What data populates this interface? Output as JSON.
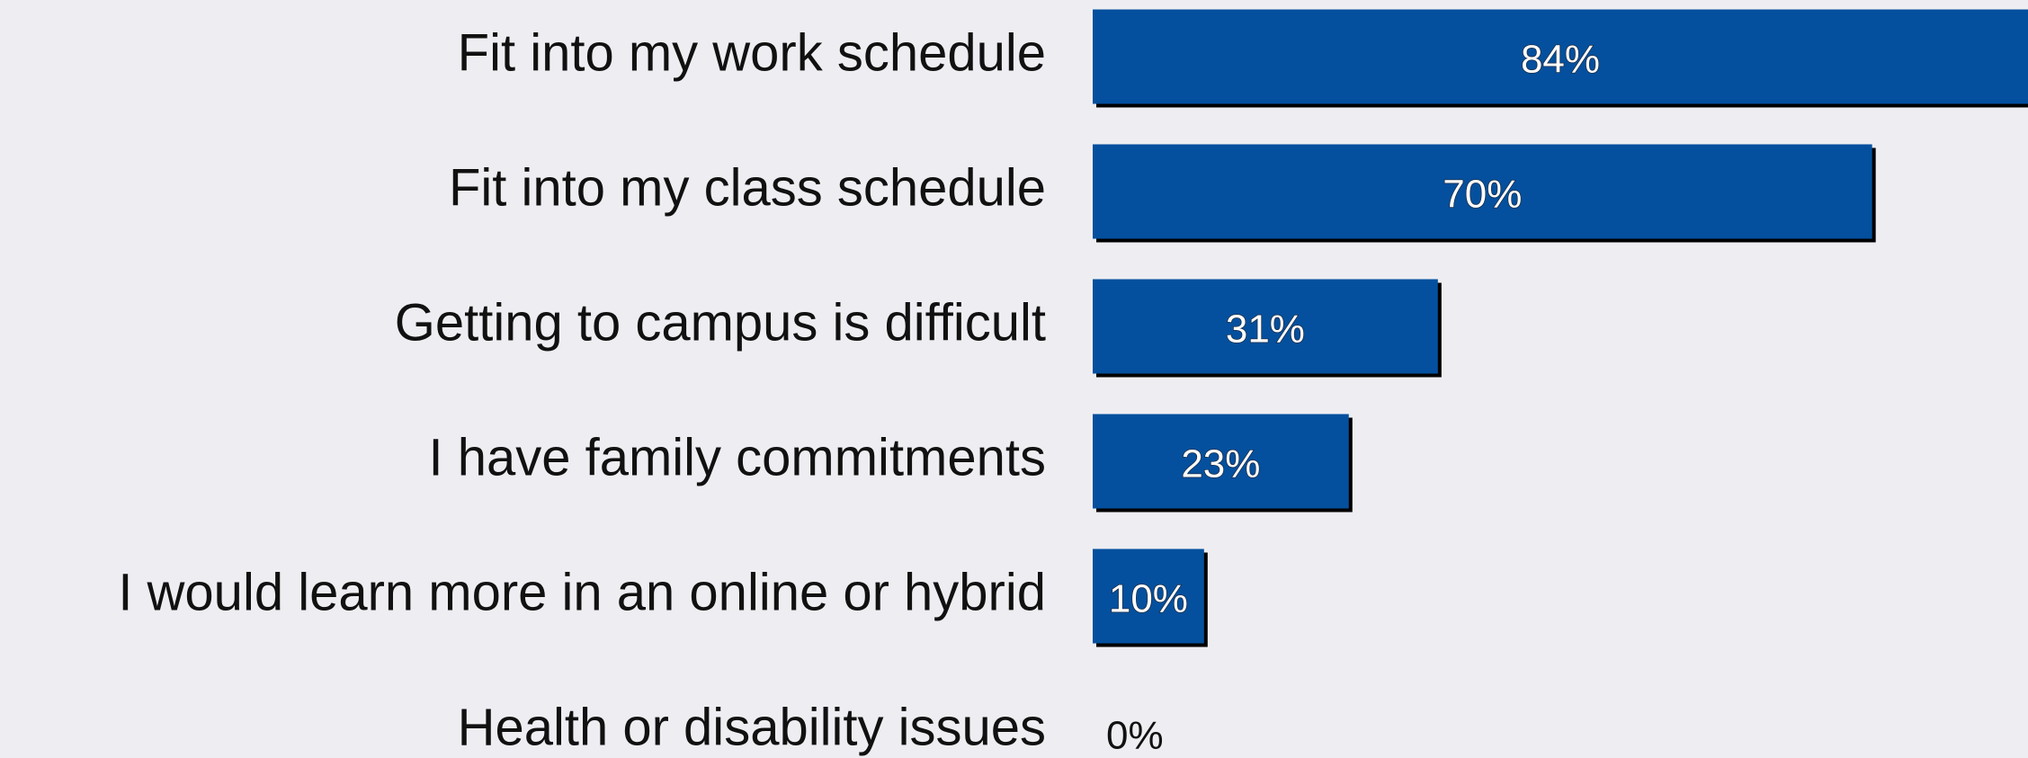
{
  "chart_data": {
    "type": "barh",
    "categories": [
      "Fit into my work schedule",
      "Fit into my class schedule",
      "Getting to campus is difficult",
      "I have family commitments",
      "I would learn more in an online or hybrid",
      "Health or disability issues"
    ],
    "values": [
      84,
      70,
      31,
      23,
      10,
      0
    ],
    "value_labels": [
      "84%",
      "70%",
      "31%",
      "23%",
      "10%",
      "0%"
    ],
    "color": "#04509e"
  }
}
